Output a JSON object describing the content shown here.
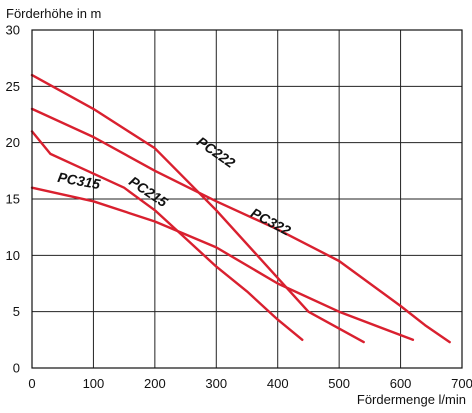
{
  "chart_data": {
    "type": "line",
    "title": "",
    "xlabel": "Fördermenge l/min",
    "ylabel": "Förderhöhe in m",
    "xlim": [
      0,
      700
    ],
    "ylim": [
      0,
      30
    ],
    "x_ticks": [
      0,
      100,
      200,
      300,
      400,
      500,
      600,
      700
    ],
    "y_ticks": [
      0,
      5,
      10,
      15,
      20,
      25,
      30
    ],
    "grid": true,
    "legend": "none",
    "line_color": "#d9202f",
    "series": [
      {
        "name": "PC222",
        "label_at": [
          295,
          18.8
        ],
        "label_angle": 35,
        "points": [
          [
            0,
            26
          ],
          [
            100,
            23
          ],
          [
            200,
            19.5
          ],
          [
            300,
            14
          ],
          [
            400,
            8
          ],
          [
            450,
            5
          ],
          [
            540,
            2.3
          ]
        ]
      },
      {
        "name": "PC322",
        "label_at": [
          385,
          12.6
        ],
        "label_angle": 28,
        "points": [
          [
            0,
            23
          ],
          [
            100,
            20.5
          ],
          [
            200,
            17.5
          ],
          [
            300,
            14.8
          ],
          [
            400,
            12.3
          ],
          [
            500,
            9.5
          ],
          [
            600,
            5.5
          ],
          [
            640,
            3.8
          ],
          [
            680,
            2.3
          ]
        ]
      },
      {
        "name": "PC215",
        "label_at": [
          185,
          15.3
        ],
        "label_angle": 34,
        "points": [
          [
            0,
            21
          ],
          [
            30,
            19
          ],
          [
            70,
            18
          ],
          [
            150,
            16
          ],
          [
            200,
            14
          ],
          [
            250,
            11.5
          ],
          [
            300,
            9
          ],
          [
            350,
            6.8
          ],
          [
            400,
            4.3
          ],
          [
            440,
            2.5
          ]
        ]
      },
      {
        "name": "PC315",
        "label_at": [
          75,
          16.2
        ],
        "label_angle": 10,
        "points": [
          [
            0,
            16
          ],
          [
            100,
            14.8
          ],
          [
            200,
            13
          ],
          [
            300,
            10.7
          ],
          [
            400,
            7.5
          ],
          [
            500,
            5
          ],
          [
            620,
            2.5
          ]
        ]
      }
    ]
  }
}
